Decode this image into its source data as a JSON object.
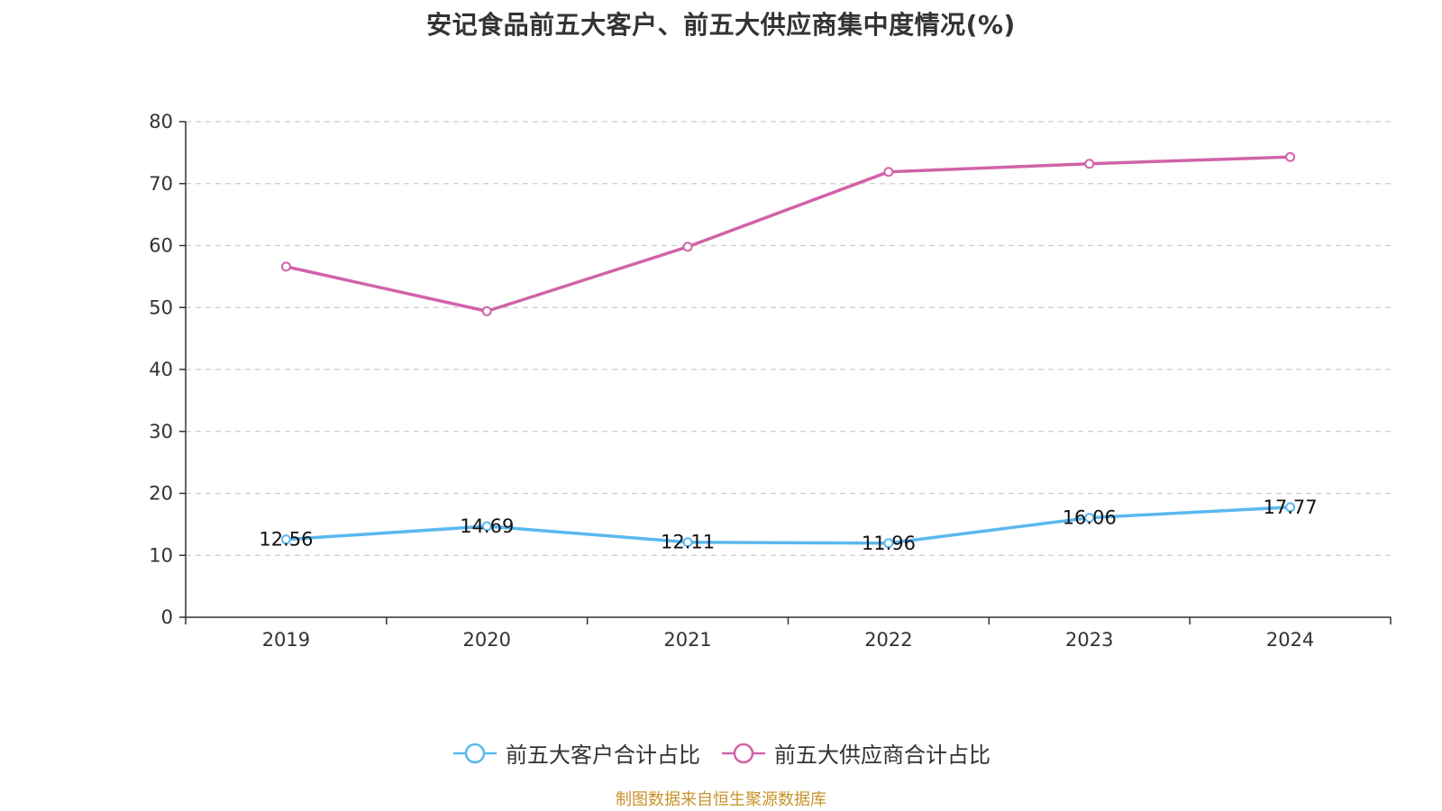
{
  "chart_data": {
    "type": "line",
    "title": "安记食品前五大客户、前五大供应商集中度情况(%)",
    "categories": [
      "2019",
      "2020",
      "2021",
      "2022",
      "2023",
      "2024"
    ],
    "series": [
      {
        "name": "前五大客户合计占比",
        "color": "#5ab8ef",
        "values": [
          12.56,
          14.69,
          12.11,
          11.96,
          16.06,
          17.77
        ],
        "show_labels": true
      },
      {
        "name": "前五大供应商合计占比",
        "color": "#d063a8",
        "values": [
          56.6,
          49.4,
          59.8,
          71.9,
          73.2,
          74.3
        ],
        "show_labels": false
      }
    ],
    "ylim": [
      0,
      80
    ],
    "yticks": [
      0,
      10,
      20,
      30,
      40,
      50,
      60,
      70,
      80
    ],
    "xlabel": "",
    "ylabel": "",
    "grid": true,
    "legend_position": "bottom"
  },
  "source": "制图数据来自恒生聚源数据库"
}
